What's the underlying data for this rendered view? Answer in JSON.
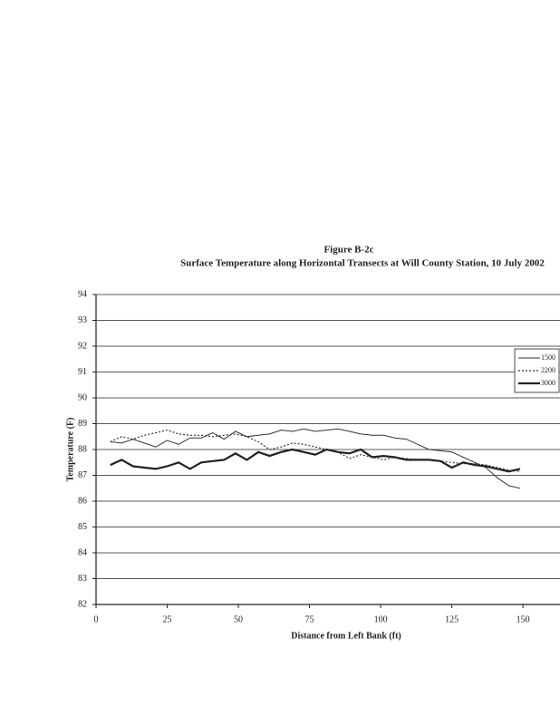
{
  "chart_data": {
    "type": "line",
    "title": "Figure B-2c",
    "subtitle": "Surface Temperature along Horizontal Transects at Will County Station, 10 July 2002",
    "x_label": "Distance from Left Bank (ft)",
    "y_label": "Temperature (F)",
    "x": [
      5,
      9,
      13,
      17,
      21,
      25,
      29,
      33,
      37,
      41,
      45,
      49,
      53,
      57,
      61,
      65,
      69,
      73,
      77,
      81,
      85,
      89,
      93,
      97,
      101,
      105,
      109,
      113,
      117,
      121,
      125,
      129,
      133,
      137,
      141,
      145,
      149
    ],
    "series": [
      {
        "name": "1500",
        "color": "#333333",
        "style": "thin",
        "values": [
          88.3,
          88.25,
          88.4,
          88.25,
          88.1,
          88.35,
          88.2,
          88.45,
          88.45,
          88.65,
          88.4,
          88.7,
          88.5,
          88.55,
          88.6,
          88.75,
          88.7,
          88.8,
          88.7,
          88.75,
          88.8,
          88.7,
          88.6,
          88.55,
          88.55,
          88.45,
          88.4,
          88.2,
          88.0,
          87.95,
          87.9,
          87.7,
          87.5,
          87.3,
          86.9,
          86.6,
          86.5
        ]
      },
      {
        "name": "2200",
        "color": "#333333",
        "style": "dotted",
        "values": [
          88.3,
          88.5,
          88.4,
          88.55,
          88.65,
          88.75,
          88.6,
          88.55,
          88.55,
          88.5,
          88.55,
          88.6,
          88.5,
          88.3,
          88.0,
          88.1,
          88.25,
          88.2,
          88.1,
          88.0,
          87.9,
          87.65,
          87.8,
          87.7,
          87.6,
          87.7,
          87.65,
          87.6,
          87.6,
          87.55,
          87.5,
          87.45,
          87.45,
          87.4,
          87.3,
          87.2,
          87.15
        ]
      },
      {
        "name": "3000",
        "color": "#222222",
        "style": "thick",
        "values": [
          87.4,
          87.6,
          87.35,
          87.3,
          87.25,
          87.35,
          87.5,
          87.25,
          87.5,
          87.55,
          87.6,
          87.85,
          87.6,
          87.9,
          87.75,
          87.9,
          88.0,
          87.9,
          87.8,
          88.0,
          87.9,
          87.85,
          88.0,
          87.7,
          87.75,
          87.7,
          87.6,
          87.6,
          87.6,
          87.55,
          87.3,
          87.5,
          87.4,
          87.35,
          87.25,
          87.15,
          87.25
        ]
      }
    ],
    "xlim": [
      0,
      163
    ],
    "xticks": [
      0,
      25,
      50,
      75,
      100,
      125,
      150
    ],
    "ylim": [
      82,
      94
    ],
    "yticks": [
      82,
      83,
      84,
      85,
      86,
      87,
      88,
      89,
      90,
      91,
      92,
      93,
      94
    ],
    "grid": true,
    "legend": "right"
  }
}
